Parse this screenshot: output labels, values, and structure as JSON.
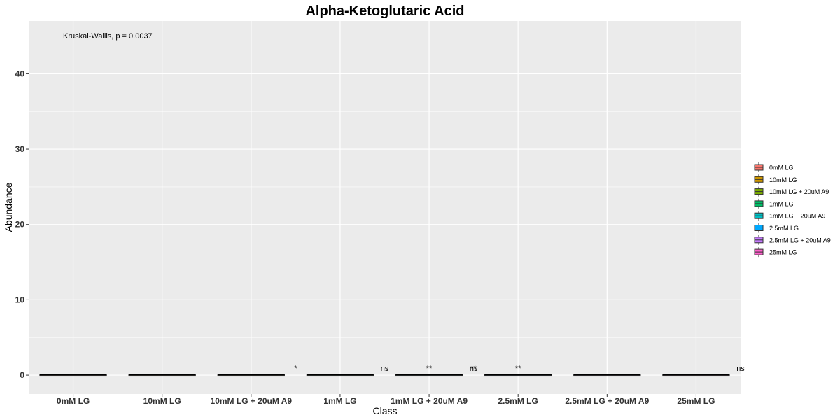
{
  "chart_data": {
    "type": "box",
    "title": "Alpha-Ketoglutaric Acid",
    "xlabel": "Class",
    "ylabel": "Abundance",
    "categories": [
      "0mM LG",
      "10mM LG",
      "10mM LG + 20uM A9",
      "1mM LG",
      "1mM LG + 20uM A9",
      "2.5mM LG",
      "2.5mM LG + 20uM A9",
      "25mM LG"
    ],
    "values": [
      0.05,
      0.05,
      0.05,
      0.05,
      0.05,
      0.05,
      0.05,
      0.05
    ],
    "ylim": [
      -2.5,
      47
    ],
    "yticks": [
      0,
      10,
      20,
      30,
      40
    ],
    "grid": true,
    "legend_position": "right",
    "colors": [
      "#F8766D",
      "#CD9600",
      "#7CAE00",
      "#00BE67",
      "#00BFC4",
      "#00A9FF",
      "#C77CFF",
      "#FF61CC"
    ],
    "test_label": "Kruskal-Wallis, p = 0.0037",
    "significance": [
      {
        "category_index": 2.5,
        "label": "*"
      },
      {
        "category_index": 3.5,
        "label": "ns"
      },
      {
        "category_index": 4.0,
        "label": "**"
      },
      {
        "category_index": 4.5,
        "label": "ns"
      },
      {
        "category_index": 4.5,
        "label": "**"
      },
      {
        "category_index": 5.0,
        "label": "**"
      },
      {
        "category_index": 7.5,
        "label": "ns"
      }
    ]
  }
}
